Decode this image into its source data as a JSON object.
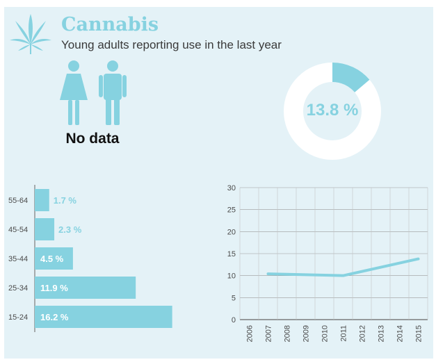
{
  "header": {
    "title": "Cannabis",
    "subtitle": "Young adults reporting use in the last year",
    "icon": "cannabis-leaf-icon"
  },
  "gender": {
    "icons": [
      "female-icon",
      "male-icon"
    ],
    "note": "No data"
  },
  "colors": {
    "accent": "#86d2e0",
    "panel": "#e4f2f7",
    "text": "#3a3a3a",
    "white": "#ffffff"
  },
  "chart_data": [
    {
      "type": "pie",
      "values": [
        13.8,
        86.2
      ],
      "center_label": "13.8 %"
    },
    {
      "type": "bar",
      "orientation": "horizontal",
      "categories": [
        "55-64",
        "45-54",
        "35-44",
        "25-34",
        "15-24"
      ],
      "values": [
        1.7,
        2.3,
        4.5,
        11.9,
        16.2
      ],
      "labels": [
        "1.7 %",
        "2.3 %",
        "4.5 %",
        "11.9 %",
        "16.2 %"
      ]
    },
    {
      "type": "line",
      "x": [
        "2006",
        "2007",
        "2008",
        "2009",
        "2010",
        "2011",
        "2012",
        "2013",
        "2014",
        "2015"
      ],
      "series": [
        {
          "points": [
            [
              2007,
              10.4
            ],
            [
              2011,
              10.0
            ],
            [
              2015,
              13.8
            ]
          ]
        }
      ],
      "yticks": [
        "0",
        "5",
        "10",
        "15",
        "20",
        "25",
        "30"
      ],
      "ylim": [
        0,
        30
      ],
      "grid": true
    }
  ]
}
